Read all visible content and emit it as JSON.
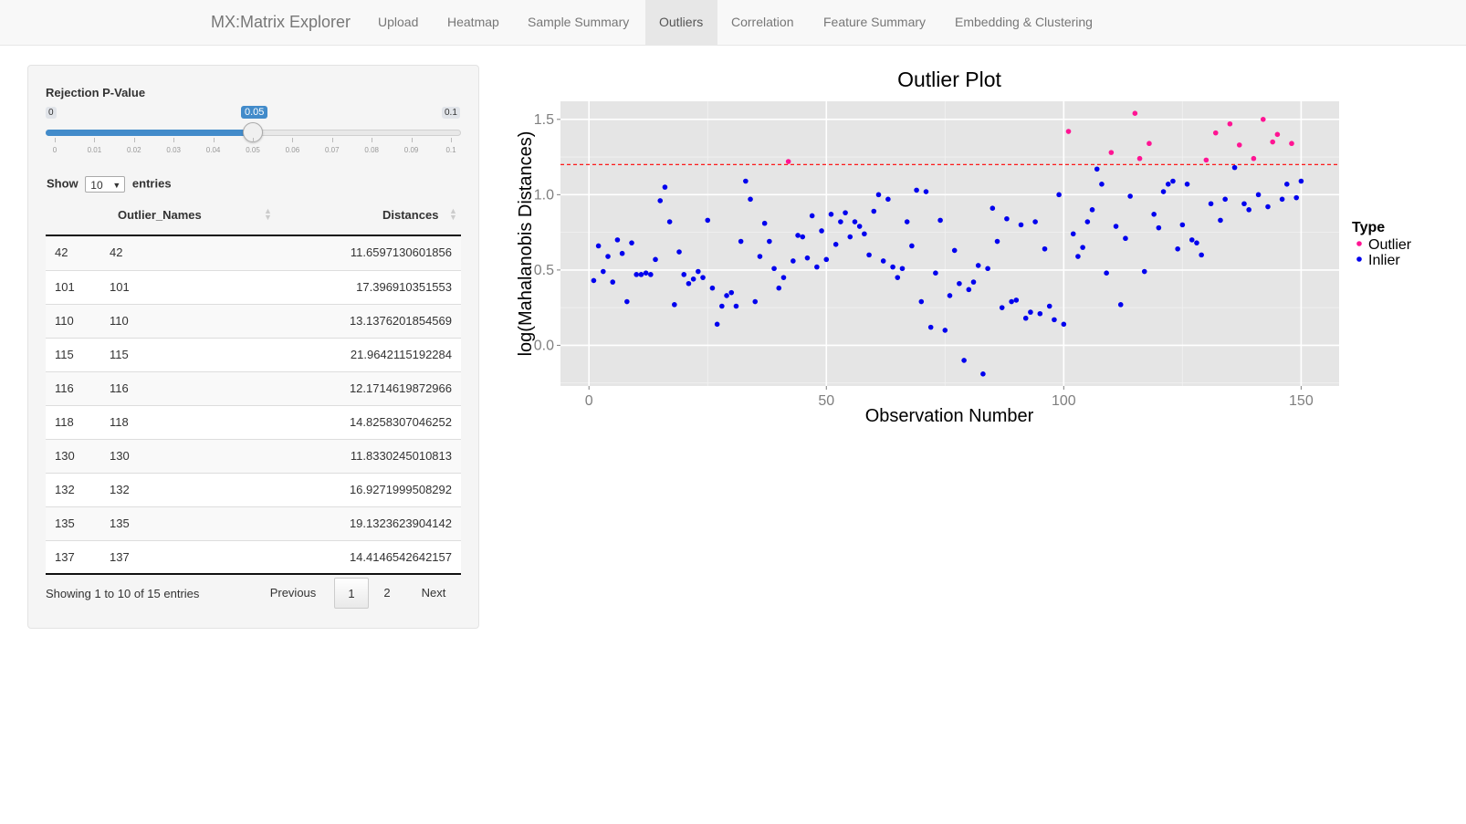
{
  "nav": {
    "brand": "MX:Matrix Explorer",
    "tabs": [
      "Upload",
      "Heatmap",
      "Sample Summary",
      "Outliers",
      "Correlation",
      "Feature Summary",
      "Embedding & Clustering"
    ],
    "active_tab": "Outliers"
  },
  "slider": {
    "label": "Rejection P-Value",
    "min_label": "0",
    "max_label": "0.1",
    "value": 0.05,
    "value_label": "0.05",
    "ticks": [
      "0",
      "0.01",
      "0.02",
      "0.03",
      "0.04",
      "0.05",
      "0.06",
      "0.07",
      "0.08",
      "0.09",
      "0.1"
    ]
  },
  "table": {
    "show_label": "Show",
    "entries_label": "entries",
    "page_size": "10",
    "columns": [
      "",
      "Outlier_Names",
      "Distances"
    ],
    "rows": [
      [
        "42",
        "42",
        "11.6597130601856"
      ],
      [
        "101",
        "101",
        "17.396910351553"
      ],
      [
        "110",
        "110",
        "13.1376201854569"
      ],
      [
        "115",
        "115",
        "21.9642115192284"
      ],
      [
        "116",
        "116",
        "12.1714619872966"
      ],
      [
        "118",
        "118",
        "14.8258307046252"
      ],
      [
        "130",
        "130",
        "11.8330245010813"
      ],
      [
        "132",
        "132",
        "16.9271999508292"
      ],
      [
        "135",
        "135",
        "19.1323623904142"
      ],
      [
        "137",
        "137",
        "14.4146542642157"
      ]
    ],
    "info": "Showing 1 to 10 of 15 entries",
    "pagination": {
      "previous": "Previous",
      "pages": [
        "1",
        "2"
      ],
      "current": "1",
      "next": "Next"
    }
  },
  "chart_data": {
    "type": "scatter",
    "title": "Outlier Plot",
    "xlabel": "Observation Number",
    "ylabel": "log(Mahalanobis Distances)",
    "xlim": [
      -6,
      158
    ],
    "ylim": [
      -0.27,
      1.62
    ],
    "xticks": [
      0,
      50,
      100,
      150
    ],
    "xtick_labels": [
      "0",
      "50",
      "100",
      "150"
    ],
    "yticks": [
      0.0,
      0.5,
      1.0,
      1.5
    ],
    "ytick_labels": [
      "0.0",
      "0.5",
      "1.0",
      "1.5"
    ],
    "threshold": 1.2,
    "threshold_color": "#ff0000",
    "panel_background": "#e5e5e5",
    "grid": true,
    "legend": {
      "title": "Type",
      "position": "right",
      "entries": [
        {
          "name": "Outlier",
          "color": "#ff1493"
        },
        {
          "name": "Inlier",
          "color": "#0000ee"
        }
      ]
    },
    "series": [
      {
        "name": "Outlier",
        "color": "#ff1493",
        "points": [
          [
            42,
            1.22
          ],
          [
            101,
            1.42
          ],
          [
            110,
            1.28
          ],
          [
            115,
            1.54
          ],
          [
            116,
            1.24
          ],
          [
            118,
            1.34
          ],
          [
            130,
            1.23
          ],
          [
            132,
            1.41
          ],
          [
            135,
            1.47
          ],
          [
            137,
            1.33
          ],
          [
            140,
            1.24
          ],
          [
            142,
            1.5
          ],
          [
            144,
            1.35
          ],
          [
            145,
            1.4
          ],
          [
            148,
            1.34
          ]
        ]
      },
      {
        "name": "Inlier",
        "color": "#0000ee",
        "points": [
          [
            1,
            0.43
          ],
          [
            2,
            0.66
          ],
          [
            3,
            0.49
          ],
          [
            4,
            0.59
          ],
          [
            5,
            0.42
          ],
          [
            6,
            0.7
          ],
          [
            7,
            0.61
          ],
          [
            8,
            0.29
          ],
          [
            9,
            0.68
          ],
          [
            10,
            0.47
          ],
          [
            11,
            0.47
          ],
          [
            12,
            0.48
          ],
          [
            13,
            0.47
          ],
          [
            14,
            0.57
          ],
          [
            15,
            0.96
          ],
          [
            16,
            1.05
          ],
          [
            17,
            0.82
          ],
          [
            18,
            0.27
          ],
          [
            19,
            0.62
          ],
          [
            20,
            0.47
          ],
          [
            21,
            0.41
          ],
          [
            22,
            0.44
          ],
          [
            23,
            0.49
          ],
          [
            24,
            0.45
          ],
          [
            25,
            0.83
          ],
          [
            26,
            0.38
          ],
          [
            27,
            0.14
          ],
          [
            28,
            0.26
          ],
          [
            29,
            0.33
          ],
          [
            30,
            0.35
          ],
          [
            31,
            0.26
          ],
          [
            32,
            0.69
          ],
          [
            33,
            1.09
          ],
          [
            34,
            0.97
          ],
          [
            35,
            0.29
          ],
          [
            36,
            0.59
          ],
          [
            37,
            0.81
          ],
          [
            38,
            0.69
          ],
          [
            39,
            0.51
          ],
          [
            40,
            0.38
          ],
          [
            41,
            0.45
          ],
          [
            43,
            0.56
          ],
          [
            44,
            0.73
          ],
          [
            45,
            0.72
          ],
          [
            46,
            0.58
          ],
          [
            47,
            0.86
          ],
          [
            48,
            0.52
          ],
          [
            49,
            0.76
          ],
          [
            50,
            0.57
          ],
          [
            51,
            0.87
          ],
          [
            52,
            0.67
          ],
          [
            53,
            0.82
          ],
          [
            54,
            0.88
          ],
          [
            55,
            0.72
          ],
          [
            56,
            0.82
          ],
          [
            57,
            0.79
          ],
          [
            58,
            0.74
          ],
          [
            59,
            0.6
          ],
          [
            60,
            0.89
          ],
          [
            61,
            1.0
          ],
          [
            62,
            0.56
          ],
          [
            63,
            0.97
          ],
          [
            64,
            0.52
          ],
          [
            65,
            0.45
          ],
          [
            66,
            0.51
          ],
          [
            67,
            0.82
          ],
          [
            68,
            0.66
          ],
          [
            69,
            1.03
          ],
          [
            70,
            0.29
          ],
          [
            71,
            1.02
          ],
          [
            72,
            0.12
          ],
          [
            73,
            0.48
          ],
          [
            74,
            0.83
          ],
          [
            75,
            0.1
          ],
          [
            76,
            0.33
          ],
          [
            77,
            0.63
          ],
          [
            78,
            0.41
          ],
          [
            79,
            -0.1
          ],
          [
            80,
            0.37
          ],
          [
            81,
            0.42
          ],
          [
            82,
            0.53
          ],
          [
            83,
            -0.19
          ],
          [
            84,
            0.51
          ],
          [
            85,
            0.91
          ],
          [
            86,
            0.69
          ],
          [
            87,
            0.25
          ],
          [
            88,
            0.84
          ],
          [
            89,
            0.29
          ],
          [
            90,
            0.3
          ],
          [
            91,
            0.8
          ],
          [
            92,
            0.18
          ],
          [
            93,
            0.22
          ],
          [
            94,
            0.82
          ],
          [
            95,
            0.21
          ],
          [
            96,
            0.64
          ],
          [
            97,
            0.26
          ],
          [
            98,
            0.17
          ],
          [
            99,
            1.0
          ],
          [
            100,
            0.14
          ],
          [
            102,
            0.74
          ],
          [
            103,
            0.59
          ],
          [
            104,
            0.65
          ],
          [
            105,
            0.82
          ],
          [
            106,
            0.9
          ],
          [
            107,
            1.17
          ],
          [
            108,
            1.07
          ],
          [
            109,
            0.48
          ],
          [
            111,
            0.79
          ],
          [
            112,
            0.27
          ],
          [
            113,
            0.71
          ],
          [
            114,
            0.99
          ],
          [
            117,
            0.49
          ],
          [
            119,
            0.87
          ],
          [
            120,
            0.78
          ],
          [
            121,
            1.02
          ],
          [
            122,
            1.07
          ],
          [
            123,
            1.09
          ],
          [
            124,
            0.64
          ],
          [
            125,
            0.8
          ],
          [
            126,
            1.07
          ],
          [
            127,
            0.7
          ],
          [
            128,
            0.68
          ],
          [
            129,
            0.6
          ],
          [
            131,
            0.94
          ],
          [
            133,
            0.83
          ],
          [
            134,
            0.97
          ],
          [
            136,
            1.18
          ],
          [
            138,
            0.94
          ],
          [
            139,
            0.9
          ],
          [
            141,
            1.0
          ],
          [
            143,
            0.92
          ],
          [
            146,
            0.97
          ],
          [
            147,
            1.07
          ],
          [
            149,
            0.98
          ],
          [
            150,
            1.09
          ]
        ]
      }
    ]
  }
}
